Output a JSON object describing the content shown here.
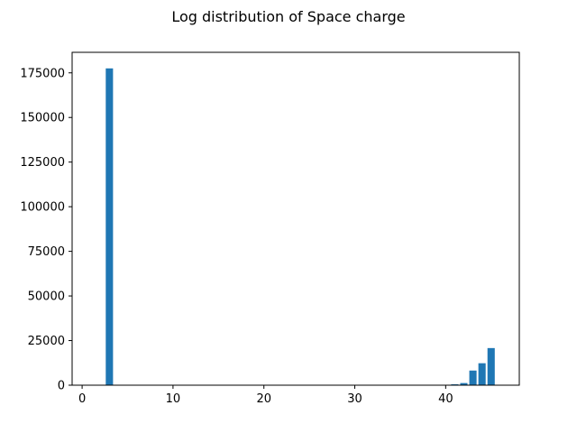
{
  "chart_data": {
    "type": "bar",
    "title": "Log distribution of Space charge",
    "xlabel": "",
    "ylabel": "",
    "x": [
      3,
      41,
      42,
      43,
      44,
      45
    ],
    "values": [
      177500,
      500,
      1200,
      8200,
      12300,
      20800
    ],
    "bar_width": 0.8,
    "xlim": [
      -1.1,
      48.1
    ],
    "ylim": [
      0,
      186500
    ],
    "xticks": [
      0,
      10,
      20,
      30,
      40
    ],
    "xtick_labels": [
      "0",
      "10",
      "20",
      "30",
      "40"
    ],
    "yticks": [
      0,
      25000,
      50000,
      75000,
      100000,
      125000,
      150000,
      175000
    ],
    "ytick_labels": [
      "0",
      "25000",
      "50000",
      "75000",
      "100000",
      "125000",
      "150000",
      "175000"
    ],
    "grid": false,
    "bar_color": "#1f77b4"
  }
}
